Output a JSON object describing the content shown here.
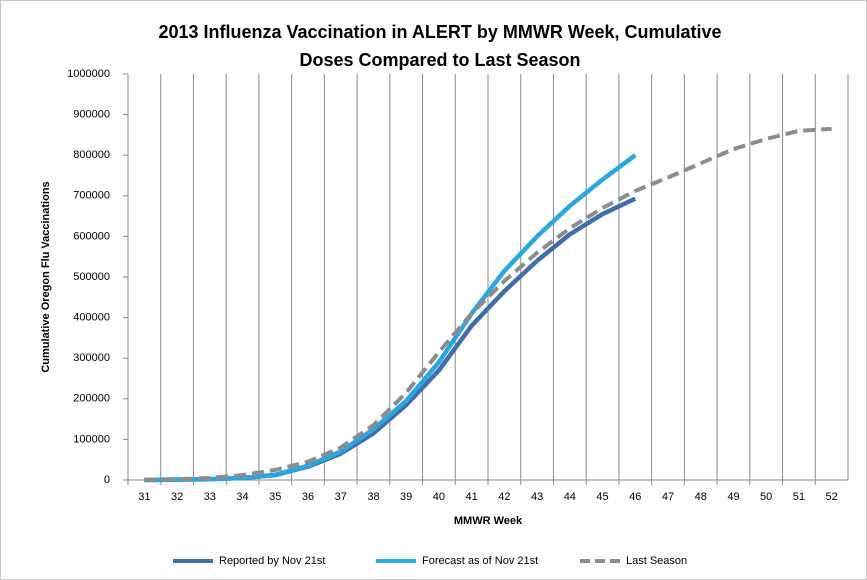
{
  "chart_data": {
    "type": "line",
    "title": [
      "2013 Influenza Vaccination in ALERT by MMWR Week, Cumulative",
      "Doses Compared to Last Season"
    ],
    "x_label": "MMWR Week",
    "y_label": "Cumulative Oregon Flu Vaccinations",
    "categories": [
      "31",
      "32",
      "33",
      "34",
      "35",
      "36",
      "37",
      "38",
      "39",
      "40",
      "41",
      "42",
      "43",
      "44",
      "45",
      "46",
      "47",
      "48",
      "49",
      "50",
      "51",
      "52"
    ],
    "series": [
      {
        "name": "Reported by Nov 21st",
        "color": "#416ea8",
        "dash": false,
        "values": [
          0,
          1000,
          2000,
          5000,
          12000,
          33000,
          65000,
          115000,
          185000,
          270000,
          380000,
          465000,
          540000,
          605000,
          655000,
          693000,
          null,
          null,
          null,
          null,
          null,
          null
        ]
      },
      {
        "name": "Forecast as of Nov 21st",
        "color": "#2aa7de",
        "dash": false,
        "values": [
          0,
          1000,
          2000,
          5000,
          13000,
          35000,
          70000,
          125000,
          195000,
          290000,
          410000,
          515000,
          600000,
          675000,
          740000,
          800000,
          null,
          null,
          null,
          null,
          null,
          null
        ]
      },
      {
        "name": "Last Season",
        "color": "#8c8c8c",
        "dash": true,
        "values": [
          1000,
          2000,
          5000,
          12000,
          25000,
          45000,
          80000,
          135000,
          215000,
          315000,
          410000,
          490000,
          560000,
          620000,
          670000,
          712000,
          745000,
          780000,
          815000,
          840000,
          860000,
          865000
        ]
      }
    ],
    "ylim": [
      0,
      1000000
    ],
    "yticks": [
      0,
      100000,
      200000,
      300000,
      400000,
      500000,
      600000,
      700000,
      800000,
      900000,
      1000000
    ],
    "grid": "x",
    "legend": "bottom"
  }
}
